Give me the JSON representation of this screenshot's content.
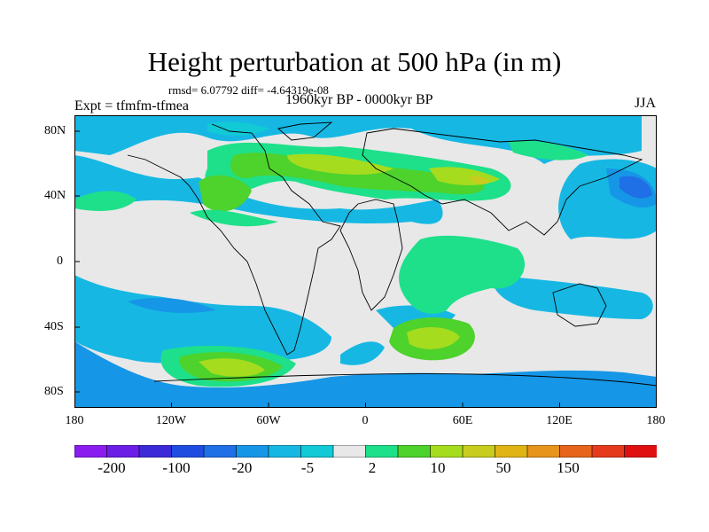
{
  "title": "Height perturbation at 500 hPa (in m)",
  "stats_text": "rmsd= 6.07792 diff= -4.64319e-08",
  "experiment_text": "Expt = tfmfm-tfmea",
  "period_text": "1960kyr BP - 0000kyr BP",
  "season": "JJA",
  "lat_labels": [
    "80N",
    "40N",
    "0",
    "40S",
    "80S"
  ],
  "lon_labels": [
    "180",
    "120W",
    "60W",
    "0",
    "60E",
    "120E",
    "180"
  ],
  "colorbar": {
    "labels": [
      "-200",
      "-100",
      "-20",
      "-5",
      "2",
      "10",
      "50",
      "150"
    ],
    "colors": [
      "#8a1cf0",
      "#6a1ee6",
      "#3c2ad8",
      "#1f4ce0",
      "#1f6fe6",
      "#1696e6",
      "#16b8e3",
      "#12c9d6",
      "#e8e8e8",
      "#1ee08a",
      "#4ed22c",
      "#a6dc1e",
      "#c8cc1e",
      "#e0b414",
      "#e6941c",
      "#e6641c",
      "#e63a1c",
      "#e01010"
    ]
  },
  "palette": {
    "ocean_gray": "#e8e8e8",
    "coast": "#000000"
  }
}
